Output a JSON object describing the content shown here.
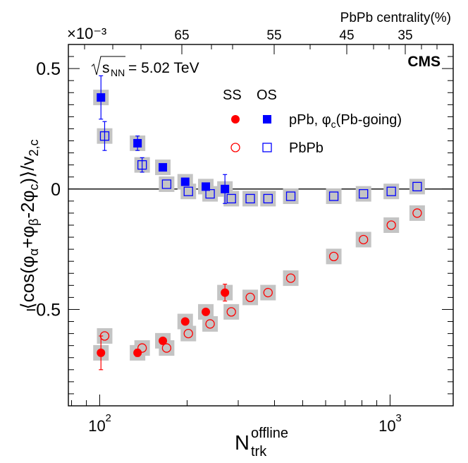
{
  "chart_data": {
    "type": "scatter",
    "top_axis_title": "PbPb centrality(%)",
    "top_axis_ticks": [
      {
        "label": "65",
        "x": 195
      },
      {
        "label": "55",
        "x": 340
      },
      {
        "label": "45",
        "x": 510
      },
      {
        "label": "35",
        "x": 800
      }
    ],
    "y_multiplier": "×10⁻³",
    "experiment": "CMS",
    "energy_label": "√sNN = 5.02 TeV",
    "energy_prefix": "√",
    "energy_s": "s",
    "energy_sub": "NN",
    "energy_suffix": " = 5.02 TeV",
    "ylabel": "⟨cos(φα+φβ−2φc)⟩/v2,c",
    "ylabel_parts": {
      "p1": "⟨cos(φ",
      "s1": "α",
      "p2": "+φ",
      "s2": "β",
      "p3": "-2φ",
      "s3": "c",
      "p4": ")⟩/v",
      "s4": "2,c"
    },
    "xlabel_main": "N",
    "xlabel_sup": "offline",
    "xlabel_sub": "trk",
    "xlim": [
      78,
      1650
    ],
    "ylim": [
      -0.0009,
      0.0006
    ],
    "x_scale": "log",
    "y_ticks": [
      {
        "value": 0.0005,
        "label": "0.5"
      },
      {
        "value": 0.0,
        "label": "0"
      },
      {
        "value": -0.0005,
        "label": "−0.5"
      }
    ],
    "x_ticks": [
      {
        "value": 100,
        "base": "10",
        "exp": "2"
      },
      {
        "value": 1000,
        "base": "10",
        "exp": "3"
      }
    ],
    "legend": {
      "header_ss": "SS",
      "header_os": "OS",
      "row1": "pPb, φc(Pb-going)",
      "row1_parts": {
        "a": "pPb, φ",
        "b": "c",
        "c": "(Pb-going)"
      },
      "row2": "PbPb"
    },
    "series": [
      {
        "name": "pPb SS",
        "color": "#ff0000",
        "marker": "filled-circle",
        "points": [
          {
            "x": 101,
            "y": -0.00068,
            "err": 7e-05
          },
          {
            "x": 135,
            "y": -0.00068,
            "err": 1.5e-05
          },
          {
            "x": 165,
            "y": -0.00063,
            "err": 1e-05
          },
          {
            "x": 197,
            "y": -0.00055,
            "err": 1e-05
          },
          {
            "x": 232,
            "y": -0.00051,
            "err": 1e-05
          },
          {
            "x": 270,
            "y": -0.00043,
            "err": 3.5e-05
          }
        ]
      },
      {
        "name": "pPb OS",
        "color": "#0000ff",
        "marker": "filled-square",
        "points": [
          {
            "x": 101,
            "y": 0.00038,
            "err": 9e-05
          },
          {
            "x": 135,
            "y": 0.00019,
            "err": 3e-05
          },
          {
            "x": 165,
            "y": 9e-05,
            "err": 1e-05
          },
          {
            "x": 197,
            "y": 3e-05,
            "err": 1e-05
          },
          {
            "x": 232,
            "y": 1e-05,
            "err": 1e-05
          },
          {
            "x": 270,
            "y": 0.0,
            "err": 6e-05
          }
        ]
      },
      {
        "name": "PbPb SS",
        "color": "#ff0000",
        "marker": "open-circle",
        "points": [
          {
            "x": 104,
            "y": -0.00061
          },
          {
            "x": 140,
            "y": -0.00066
          },
          {
            "x": 170,
            "y": -0.00066
          },
          {
            "x": 202,
            "y": -0.0006
          },
          {
            "x": 240,
            "y": -0.00056
          },
          {
            "x": 284,
            "y": -0.00051
          },
          {
            "x": 330,
            "y": -0.00045
          },
          {
            "x": 380,
            "y": -0.00043
          },
          {
            "x": 455,
            "y": -0.00037
          },
          {
            "x": 640,
            "y": -0.00028
          },
          {
            "x": 810,
            "y": -0.00021
          },
          {
            "x": 1010,
            "y": -0.00015
          },
          {
            "x": 1240,
            "y": -0.0001
          }
        ]
      },
      {
        "name": "PbPb OS",
        "color": "#0000ff",
        "marker": "open-square",
        "points": [
          {
            "x": 104,
            "y": 0.00022,
            "err": 6e-05
          },
          {
            "x": 140,
            "y": 0.0001,
            "err": 3e-05
          },
          {
            "x": 170,
            "y": 2e-05
          },
          {
            "x": 202,
            "y": -1e-05
          },
          {
            "x": 240,
            "y": -2e-05
          },
          {
            "x": 284,
            "y": -4e-05
          },
          {
            "x": 330,
            "y": -4e-05
          },
          {
            "x": 380,
            "y": -4e-05
          },
          {
            "x": 455,
            "y": -3e-05
          },
          {
            "x": 640,
            "y": -3e-05
          },
          {
            "x": 810,
            "y": -2e-05
          },
          {
            "x": 1010,
            "y": -1e-05
          },
          {
            "x": 1240,
            "y": 1e-05
          }
        ]
      }
    ]
  }
}
